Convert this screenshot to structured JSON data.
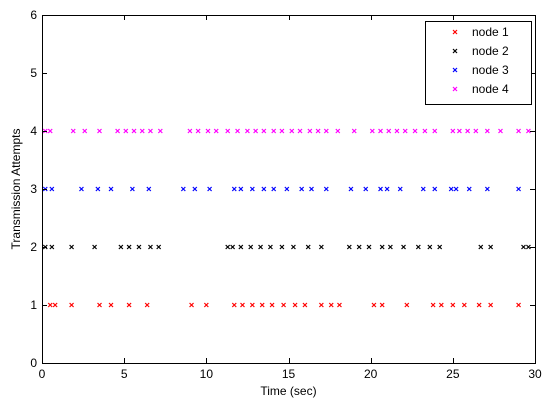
{
  "chart_data": {
    "type": "scatter",
    "title": "",
    "xlabel": "Time (sec)",
    "ylabel": "Transmission Attempts",
    "xlim": [
      0,
      30
    ],
    "ylim": [
      0,
      6
    ],
    "xticks": [
      0,
      5,
      10,
      15,
      20,
      25,
      30
    ],
    "yticks": [
      0,
      1,
      2,
      3,
      4,
      5,
      6
    ],
    "xtick_labels": [
      "0",
      "5",
      "10",
      "15",
      "20",
      "25",
      "30"
    ],
    "ytick_labels": [
      "0",
      "1",
      "2",
      "3",
      "4",
      "5",
      "6"
    ],
    "grid": false,
    "legend_position": "top-right",
    "marker": "x",
    "series": [
      {
        "name": "node 1",
        "color": "#ff0000",
        "x": [
          0.5,
          0.8,
          1.8,
          3.5,
          4.2,
          5.3,
          6.4,
          9.1,
          10.0,
          11.7,
          12.2,
          12.8,
          13.4,
          14.0,
          14.7,
          15.4,
          16.0,
          17.0,
          17.6,
          18.1,
          20.2,
          20.7,
          22.2,
          23.8,
          24.3,
          25.0,
          25.7,
          26.6,
          27.3,
          29.0
        ],
        "y": [
          1,
          1,
          1,
          1,
          1,
          1,
          1,
          1,
          1,
          1,
          1,
          1,
          1,
          1,
          1,
          1,
          1,
          1,
          1,
          1,
          1,
          1,
          1,
          1,
          1,
          1,
          1,
          1,
          1,
          1
        ]
      },
      {
        "name": "node 2",
        "color": "#000000",
        "x": [
          0.2,
          0.6,
          1.8,
          3.2,
          4.8,
          5.3,
          5.9,
          6.6,
          7.1,
          11.3,
          11.6,
          12.1,
          12.7,
          13.3,
          13.9,
          14.6,
          15.3,
          16.2,
          17.0,
          18.7,
          19.3,
          19.9,
          20.7,
          21.2,
          22.0,
          22.9,
          23.6,
          24.2,
          26.7,
          27.3,
          29.3,
          29.6
        ],
        "y": [
          2,
          2,
          2,
          2,
          2,
          2,
          2,
          2,
          2,
          2,
          2,
          2,
          2,
          2,
          2,
          2,
          2,
          2,
          2,
          2,
          2,
          2,
          2,
          2,
          2,
          2,
          2,
          2,
          2,
          2,
          2,
          2
        ]
      },
      {
        "name": "node 3",
        "color": "#0000ff",
        "x": [
          0.2,
          0.6,
          2.4,
          3.4,
          4.2,
          5.5,
          6.5,
          8.6,
          9.3,
          10.2,
          11.7,
          12.1,
          12.8,
          13.5,
          14.1,
          14.9,
          15.8,
          16.4,
          17.3,
          18.8,
          19.7,
          20.6,
          21.0,
          21.8,
          23.2,
          23.9,
          24.9,
          25.2,
          26.0,
          27.1,
          29.0
        ],
        "y": [
          3,
          3,
          3,
          3,
          3,
          3,
          3,
          3,
          3,
          3,
          3,
          3,
          3,
          3,
          3,
          3,
          3,
          3,
          3,
          3,
          3,
          3,
          3,
          3,
          3,
          3,
          3,
          3,
          3,
          3,
          3
        ]
      },
      {
        "name": "node 4",
        "color": "#ff00ff",
        "x": [
          0.2,
          0.5,
          1.9,
          2.6,
          3.5,
          4.6,
          5.1,
          5.6,
          6.1,
          6.6,
          7.2,
          9.0,
          9.5,
          10.1,
          10.6,
          11.3,
          11.9,
          12.5,
          13.0,
          13.5,
          14.1,
          14.6,
          15.2,
          15.7,
          16.3,
          16.8,
          17.3,
          18.0,
          19.0,
          20.1,
          20.6,
          21.1,
          21.6,
          22.1,
          22.7,
          23.3,
          23.9,
          25.0,
          25.4,
          25.9,
          26.4,
          27.1,
          27.9,
          29.0,
          29.6
        ],
        "y": [
          4,
          4,
          4,
          4,
          4,
          4,
          4,
          4,
          4,
          4,
          4,
          4,
          4,
          4,
          4,
          4,
          4,
          4,
          4,
          4,
          4,
          4,
          4,
          4,
          4,
          4,
          4,
          4,
          4,
          4,
          4,
          4,
          4,
          4,
          4,
          4,
          4,
          4,
          4,
          4,
          4,
          4,
          4,
          4,
          4
        ]
      }
    ]
  }
}
